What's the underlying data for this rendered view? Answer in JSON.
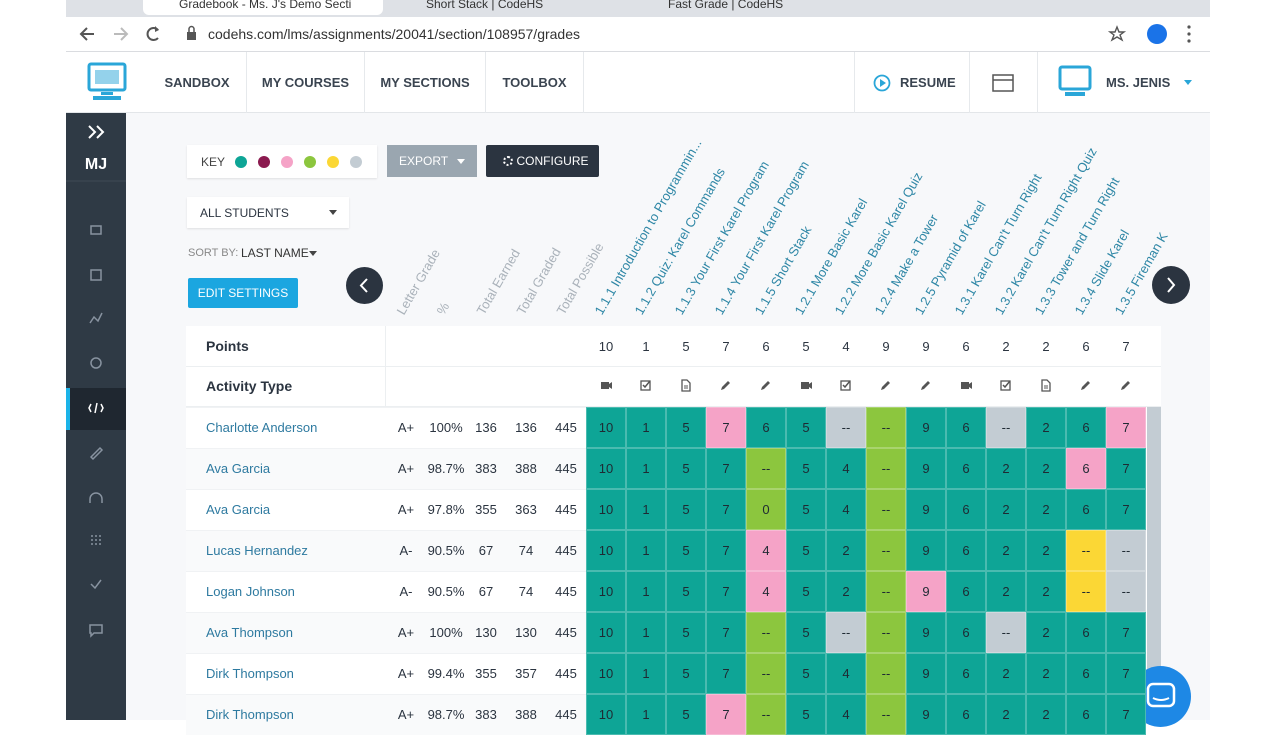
{
  "browser": {
    "tabs": [
      "Gradebook - Ms. J's Demo Secti",
      "Short Stack | CodeHS",
      "Fast Grade | CodeHS"
    ],
    "url": "codehs.com/lms/assignments/20041/section/108957/grades"
  },
  "nav": {
    "items": [
      "SANDBOX",
      "MY COURSES",
      "MY SECTIONS",
      "TOOLBOX"
    ],
    "resume": "RESUME",
    "user": "MS. JENIS"
  },
  "sidebar": {
    "initials": "MJ"
  },
  "toolbar": {
    "key": "KEY",
    "key_colors": [
      "#0ea596",
      "#8b1a4f",
      "#f5a3c7",
      "#8cc63e",
      "#fbd735",
      "#c3ccd3"
    ],
    "export": "EXPORT",
    "configure": "CONFIGURE",
    "filter": "ALL STUDENTS",
    "sort_label": "SORT BY:",
    "sort_value": "LAST NAME",
    "edit": "EDIT SETTINGS"
  },
  "gradebook": {
    "summary_headers": [
      "Letter Grade",
      "%",
      "Total Earned",
      "Total Graded",
      "Total Possible"
    ],
    "points_label": "Points",
    "activity_label": "Activity Type",
    "assignments": [
      {
        "title": "1.1.1 Introduction to Programmin...",
        "points": 10,
        "activity": "video"
      },
      {
        "title": "1.1.2 Quiz: Karel Commands",
        "points": 1,
        "activity": "quiz"
      },
      {
        "title": "1.1.3 Your First Karel Program",
        "points": 5,
        "activity": "doc"
      },
      {
        "title": "1.1.4 Your First Karel Program",
        "points": 7,
        "activity": "code"
      },
      {
        "title": "1.1.5 Short Stack",
        "points": 6,
        "activity": "code"
      },
      {
        "title": "1.2.1 More Basic Karel",
        "points": 5,
        "activity": "video"
      },
      {
        "title": "1.2.2 More Basic Karel Quiz",
        "points": 4,
        "activity": "quiz"
      },
      {
        "title": "1.2.4 Make a Tower",
        "points": 9,
        "activity": "code"
      },
      {
        "title": "1.2.5 Pyramid of Karel",
        "points": 9,
        "activity": "code"
      },
      {
        "title": "1.3.1 Karel Can't Turn Right",
        "points": 6,
        "activity": "video"
      },
      {
        "title": "1.3.2 Karel Can't Turn Right Quiz",
        "points": 2,
        "activity": "quiz"
      },
      {
        "title": "1.3.3 Tower and Turn Right",
        "points": 2,
        "activity": "doc"
      },
      {
        "title": "1.3.4 Slide Karel",
        "points": 6,
        "activity": "code"
      },
      {
        "title": "1.3.5 Fireman K",
        "points": 7,
        "activity": "code"
      }
    ],
    "students": [
      {
        "name": "Charlotte Anderson",
        "letter": "A+",
        "percent": "100%",
        "earned": 136,
        "graded": 136,
        "possible": 445,
        "grades": [
          {
            "value": "10",
            "color": "#0ea596"
          },
          {
            "value": "1",
            "color": "#0ea596"
          },
          {
            "value": "5",
            "color": "#0ea596"
          },
          {
            "value": "7",
            "color": "#f5a3c7"
          },
          {
            "value": "6",
            "color": "#0ea596"
          },
          {
            "value": "5",
            "color": "#0ea596"
          },
          {
            "value": "--",
            "color": "#c3ccd3"
          },
          {
            "value": "--",
            "color": "#8cc63e"
          },
          {
            "value": "9",
            "color": "#0ea596"
          },
          {
            "value": "6",
            "color": "#0ea596"
          },
          {
            "value": "--",
            "color": "#c3ccd3"
          },
          {
            "value": "2",
            "color": "#0ea596"
          },
          {
            "value": "6",
            "color": "#0ea596"
          },
          {
            "value": "7",
            "color": "#f5a3c7"
          }
        ]
      },
      {
        "name": "Ava Garcia",
        "letter": "A+",
        "percent": "98.7%",
        "earned": 383,
        "graded": 388,
        "possible": 445,
        "grades": [
          {
            "value": "10",
            "color": "#0ea596"
          },
          {
            "value": "1",
            "color": "#0ea596"
          },
          {
            "value": "5",
            "color": "#0ea596"
          },
          {
            "value": "7",
            "color": "#0ea596"
          },
          {
            "value": "--",
            "color": "#8cc63e"
          },
          {
            "value": "5",
            "color": "#0ea596"
          },
          {
            "value": "4",
            "color": "#0ea596"
          },
          {
            "value": "--",
            "color": "#8cc63e"
          },
          {
            "value": "9",
            "color": "#0ea596"
          },
          {
            "value": "6",
            "color": "#0ea596"
          },
          {
            "value": "2",
            "color": "#0ea596"
          },
          {
            "value": "2",
            "color": "#0ea596"
          },
          {
            "value": "6",
            "color": "#f5a3c7"
          },
          {
            "value": "7",
            "color": "#0ea596"
          }
        ]
      },
      {
        "name": "Ava Garcia",
        "letter": "A+",
        "percent": "97.8%",
        "earned": 355,
        "graded": 363,
        "possible": 445,
        "grades": [
          {
            "value": "10",
            "color": "#0ea596"
          },
          {
            "value": "1",
            "color": "#0ea596"
          },
          {
            "value": "5",
            "color": "#0ea596"
          },
          {
            "value": "7",
            "color": "#0ea596"
          },
          {
            "value": "0",
            "color": "#8cc63e"
          },
          {
            "value": "5",
            "color": "#0ea596"
          },
          {
            "value": "4",
            "color": "#0ea596"
          },
          {
            "value": "--",
            "color": "#8cc63e"
          },
          {
            "value": "9",
            "color": "#0ea596"
          },
          {
            "value": "6",
            "color": "#0ea596"
          },
          {
            "value": "2",
            "color": "#0ea596"
          },
          {
            "value": "2",
            "color": "#0ea596"
          },
          {
            "value": "6",
            "color": "#0ea596"
          },
          {
            "value": "7",
            "color": "#0ea596"
          }
        ]
      },
      {
        "name": "Lucas Hernandez",
        "letter": "A-",
        "percent": "90.5%",
        "earned": 67,
        "graded": 74,
        "possible": 445,
        "grades": [
          {
            "value": "10",
            "color": "#0ea596"
          },
          {
            "value": "1",
            "color": "#0ea596"
          },
          {
            "value": "5",
            "color": "#0ea596"
          },
          {
            "value": "7",
            "color": "#0ea596"
          },
          {
            "value": "4",
            "color": "#f5a3c7"
          },
          {
            "value": "5",
            "color": "#0ea596"
          },
          {
            "value": "2",
            "color": "#0ea596"
          },
          {
            "value": "--",
            "color": "#8cc63e"
          },
          {
            "value": "9",
            "color": "#0ea596"
          },
          {
            "value": "6",
            "color": "#0ea596"
          },
          {
            "value": "2",
            "color": "#0ea596"
          },
          {
            "value": "2",
            "color": "#0ea596"
          },
          {
            "value": "--",
            "color": "#fbd735"
          },
          {
            "value": "--",
            "color": "#c3ccd3"
          }
        ]
      },
      {
        "name": "Logan Johnson",
        "letter": "A-",
        "percent": "90.5%",
        "earned": 67,
        "graded": 74,
        "possible": 445,
        "grades": [
          {
            "value": "10",
            "color": "#0ea596"
          },
          {
            "value": "1",
            "color": "#0ea596"
          },
          {
            "value": "5",
            "color": "#0ea596"
          },
          {
            "value": "7",
            "color": "#0ea596"
          },
          {
            "value": "4",
            "color": "#f5a3c7"
          },
          {
            "value": "5",
            "color": "#0ea596"
          },
          {
            "value": "2",
            "color": "#0ea596"
          },
          {
            "value": "--",
            "color": "#8cc63e"
          },
          {
            "value": "9",
            "color": "#f5a3c7"
          },
          {
            "value": "6",
            "color": "#0ea596"
          },
          {
            "value": "2",
            "color": "#0ea596"
          },
          {
            "value": "2",
            "color": "#0ea596"
          },
          {
            "value": "--",
            "color": "#fbd735"
          },
          {
            "value": "--",
            "color": "#c3ccd3"
          }
        ]
      },
      {
        "name": "Ava Thompson",
        "letter": "A+",
        "percent": "100%",
        "earned": 130,
        "graded": 130,
        "possible": 445,
        "grades": [
          {
            "value": "10",
            "color": "#0ea596"
          },
          {
            "value": "1",
            "color": "#0ea596"
          },
          {
            "value": "5",
            "color": "#0ea596"
          },
          {
            "value": "7",
            "color": "#0ea596"
          },
          {
            "value": "--",
            "color": "#8cc63e"
          },
          {
            "value": "5",
            "color": "#0ea596"
          },
          {
            "value": "--",
            "color": "#c3ccd3"
          },
          {
            "value": "--",
            "color": "#8cc63e"
          },
          {
            "value": "9",
            "color": "#0ea596"
          },
          {
            "value": "6",
            "color": "#0ea596"
          },
          {
            "value": "--",
            "color": "#c3ccd3"
          },
          {
            "value": "2",
            "color": "#0ea596"
          },
          {
            "value": "6",
            "color": "#0ea596"
          },
          {
            "value": "7",
            "color": "#0ea596"
          }
        ]
      },
      {
        "name": "Dirk Thompson",
        "letter": "A+",
        "percent": "99.4%",
        "earned": 355,
        "graded": 357,
        "possible": 445,
        "grades": [
          {
            "value": "10",
            "color": "#0ea596"
          },
          {
            "value": "1",
            "color": "#0ea596"
          },
          {
            "value": "5",
            "color": "#0ea596"
          },
          {
            "value": "7",
            "color": "#0ea596"
          },
          {
            "value": "--",
            "color": "#8cc63e"
          },
          {
            "value": "5",
            "color": "#0ea596"
          },
          {
            "value": "4",
            "color": "#0ea596"
          },
          {
            "value": "--",
            "color": "#8cc63e"
          },
          {
            "value": "9",
            "color": "#0ea596"
          },
          {
            "value": "6",
            "color": "#0ea596"
          },
          {
            "value": "2",
            "color": "#0ea596"
          },
          {
            "value": "2",
            "color": "#0ea596"
          },
          {
            "value": "6",
            "color": "#0ea596"
          },
          {
            "value": "7",
            "color": "#0ea596"
          }
        ]
      },
      {
        "name": "Dirk Thompson",
        "letter": "A+",
        "percent": "98.7%",
        "earned": 383,
        "graded": 388,
        "possible": 445,
        "grades": [
          {
            "value": "10",
            "color": "#0ea596"
          },
          {
            "value": "1",
            "color": "#0ea596"
          },
          {
            "value": "5",
            "color": "#0ea596"
          },
          {
            "value": "7",
            "color": "#f5a3c7"
          },
          {
            "value": "--",
            "color": "#8cc63e"
          },
          {
            "value": "5",
            "color": "#0ea596"
          },
          {
            "value": "4",
            "color": "#0ea596"
          },
          {
            "value": "--",
            "color": "#8cc63e"
          },
          {
            "value": "9",
            "color": "#0ea596"
          },
          {
            "value": "6",
            "color": "#0ea596"
          },
          {
            "value": "2",
            "color": "#0ea596"
          },
          {
            "value": "2",
            "color": "#0ea596"
          },
          {
            "value": "6",
            "color": "#0ea596"
          },
          {
            "value": "7",
            "color": "#0ea596"
          }
        ]
      }
    ]
  }
}
